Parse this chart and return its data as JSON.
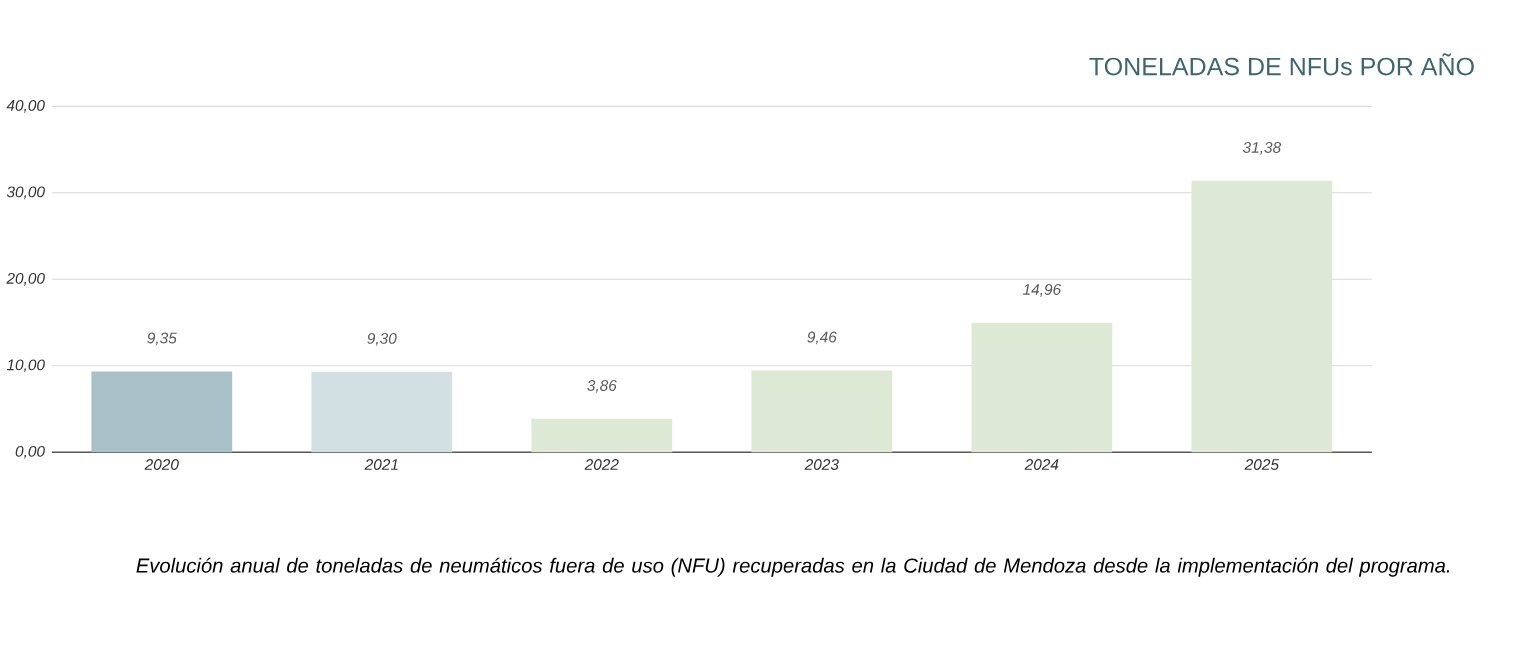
{
  "chart_data": {
    "type": "bar",
    "title": "TONELADAS DE NFUs POR AÑO",
    "categories": [
      "2020",
      "2021",
      "2022",
      "2023",
      "2024",
      "2025"
    ],
    "values": [
      9.35,
      9.3,
      3.86,
      9.46,
      14.96,
      31.38
    ],
    "colors": [
      "#a8c1c6",
      "#d2dfe3",
      "#dde9d5",
      "#dde9d5",
      "#dde9d5",
      "#dde9d5"
    ],
    "value_labels": [
      "9,35",
      "9,30",
      "3,86",
      "9,46",
      "14,96",
      "31,38"
    ],
    "ylim": [
      0,
      40
    ],
    "yticks": [
      {
        "value": 0,
        "label": "0,00"
      },
      {
        "value": 10,
        "label": "10,00"
      },
      {
        "value": 20,
        "label": "20,00"
      },
      {
        "value": 30,
        "label": "30,00"
      },
      {
        "value": 40,
        "label": "40,00"
      }
    ],
    "grid": "y",
    "annotations": [
      "Evolución anual de toneladas de neumáticos fuera de uso (NFU) recuperadas en la Ciudad de Mendoza desde la implementación del programa."
    ]
  }
}
